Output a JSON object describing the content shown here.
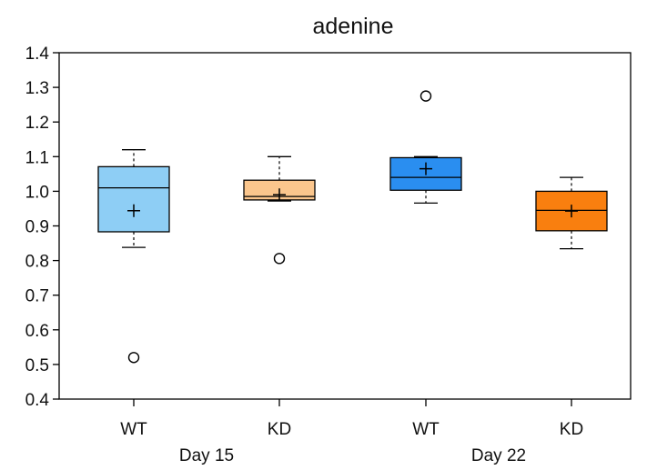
{
  "chart_data": {
    "type": "box",
    "title": "adenine",
    "xlabel": "",
    "ylabel": "",
    "ylim": [
      0.4,
      1.4
    ],
    "yticks": [
      0.4,
      0.5,
      0.6,
      0.7,
      0.8,
      0.9,
      1.0,
      1.1,
      1.2,
      1.3,
      1.4
    ],
    "ytick_labels": [
      "0.4",
      "0.5",
      "0.6",
      "0.7",
      "0.8",
      "0.9",
      "1.0",
      "1.1",
      "1.2",
      "1.3",
      "1.4"
    ],
    "grid": false,
    "legend": "none",
    "groups": [
      {
        "label": "Day 15",
        "categories": [
          "WT",
          "KD"
        ]
      },
      {
        "label": "Day 22",
        "categories": [
          "WT",
          "KD"
        ]
      }
    ],
    "boxes": [
      {
        "category": "WT",
        "group": "Day 15",
        "whisker_low": 0.838,
        "q1": 0.883,
        "median": 1.01,
        "q3": 1.071,
        "whisker_high": 1.12,
        "mean": 0.944,
        "outliers": [
          0.52
        ],
        "color": "#8ecef5"
      },
      {
        "category": "KD",
        "group": "Day 15",
        "whisker_low": 0.972,
        "q1": 0.975,
        "median": 0.985,
        "q3": 1.032,
        "whisker_high": 1.1,
        "mean": 0.99,
        "outliers": [
          0.806
        ],
        "color": "#fbc68d"
      },
      {
        "category": "WT",
        "group": "Day 22",
        "whisker_low": 0.966,
        "q1": 1.003,
        "median": 1.04,
        "q3": 1.097,
        "whisker_high": 1.1,
        "mean": 1.065,
        "outliers": [
          1.275
        ],
        "color": "#2a8ef0"
      },
      {
        "category": "KD",
        "group": "Day 22",
        "whisker_low": 0.834,
        "q1": 0.886,
        "median": 0.945,
        "q3": 1.0,
        "whisker_high": 1.04,
        "mean": 0.943,
        "outliers": [],
        "color": "#f97f0f"
      }
    ]
  }
}
